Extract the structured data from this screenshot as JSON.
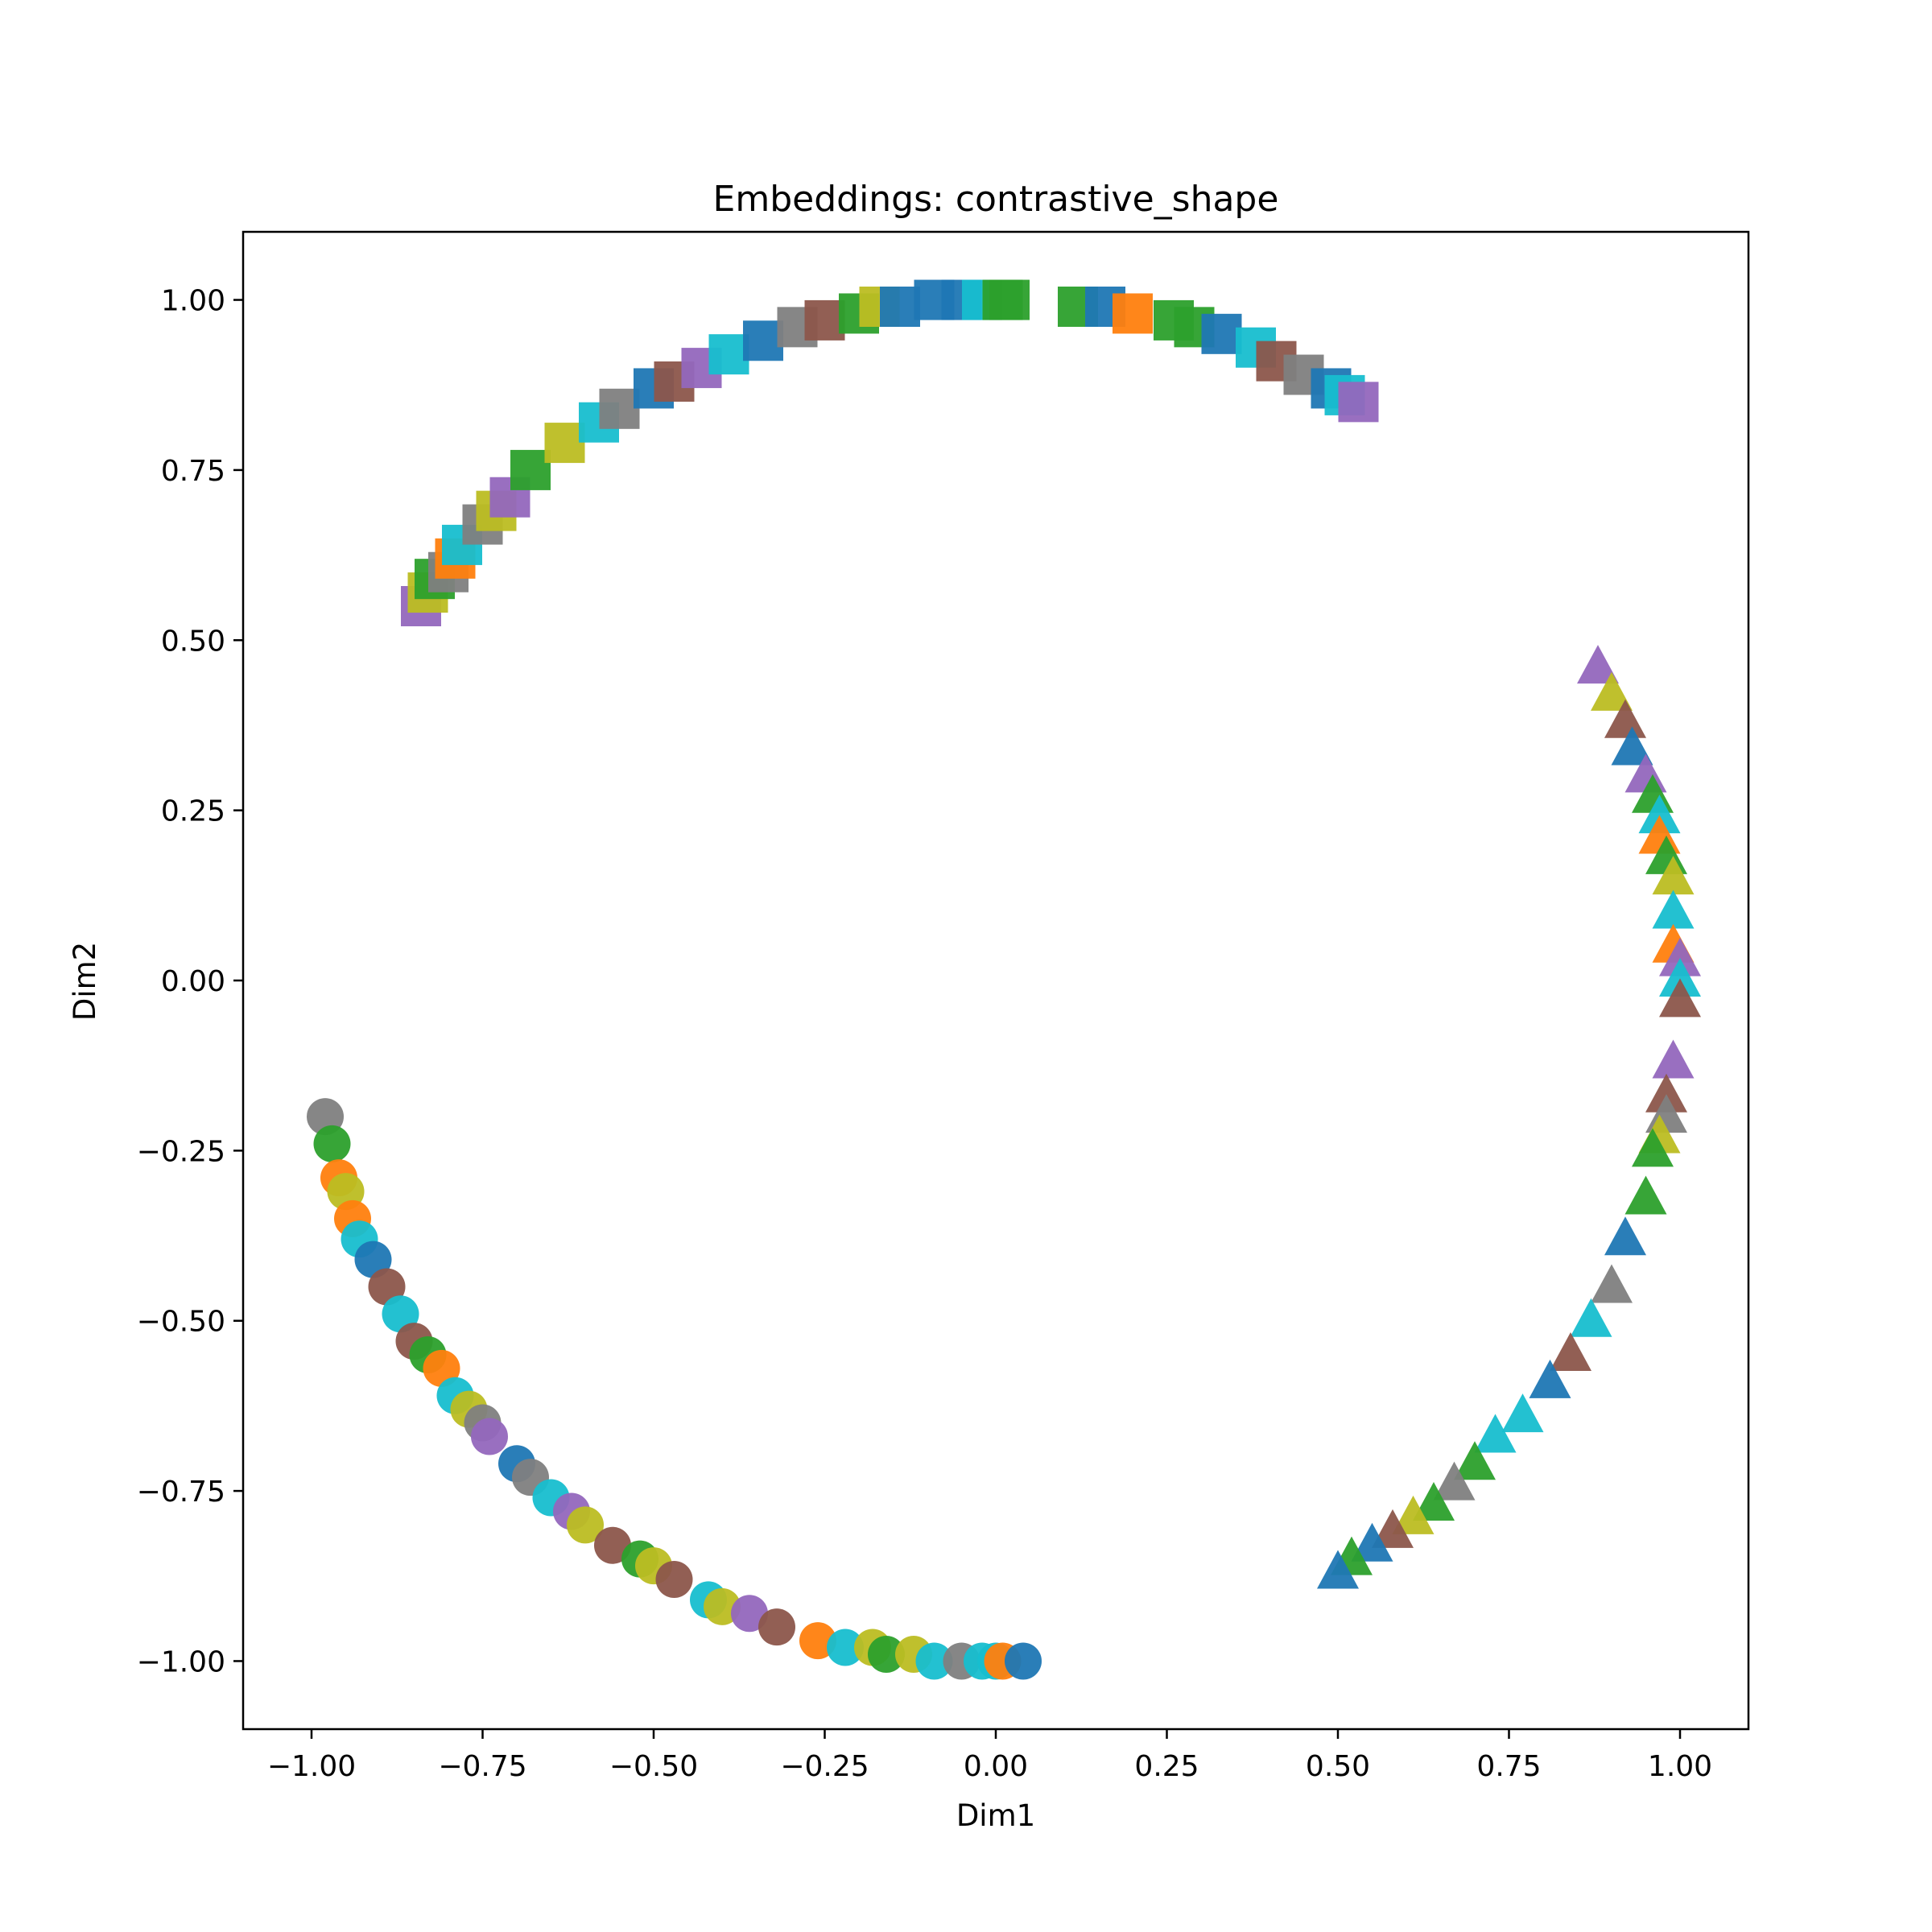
{
  "chart_data": {
    "type": "scatter",
    "title": "Embeddings: contrastive_shape",
    "xlabel": "Dim1",
    "ylabel": "Dim2",
    "xlim": [
      -1.1,
      1.1
    ],
    "ylim": [
      -1.1,
      1.1
    ],
    "xticks": [
      -1.0,
      -0.75,
      -0.5,
      -0.25,
      0.0,
      0.25,
      0.5,
      0.75,
      1.0
    ],
    "yticks": [
      -1.0,
      -0.75,
      -0.5,
      -0.25,
      0.0,
      0.25,
      0.5,
      0.75,
      1.0
    ],
    "xtick_labels": [
      "−1.00",
      "−0.75",
      "−0.50",
      "−0.25",
      "0.00",
      "0.25",
      "0.50",
      "0.75",
      "1.00"
    ],
    "ytick_labels": [
      "−1.00",
      "−0.75",
      "−0.50",
      "−0.25",
      "0.00",
      "0.25",
      "0.50",
      "0.75",
      "1.00"
    ],
    "grid": false,
    "legend": "none",
    "palette": [
      "#1f77b4",
      "#ff7f0e",
      "#2ca02c",
      "#d62728",
      "#9467bd",
      "#8c564b",
      "#e377c2",
      "#7f7f7f",
      "#bcbd22",
      "#17becf"
    ],
    "series": [
      {
        "marker": "square",
        "points": [
          [
            -0.84,
            0.55,
            "#9467bd"
          ],
          [
            -0.83,
            0.57,
            "#bcbd22"
          ],
          [
            -0.82,
            0.59,
            "#2ca02c"
          ],
          [
            -0.8,
            0.6,
            "#7f7f7f"
          ],
          [
            -0.79,
            0.62,
            "#ff7f0e"
          ],
          [
            -0.78,
            0.64,
            "#17becf"
          ],
          [
            -0.75,
            0.67,
            "#7f7f7f"
          ],
          [
            -0.73,
            0.69,
            "#bcbd22"
          ],
          [
            -0.71,
            0.71,
            "#9467bd"
          ],
          [
            -0.68,
            0.75,
            "#2ca02c"
          ],
          [
            -0.63,
            0.79,
            "#bcbd22"
          ],
          [
            -0.58,
            0.82,
            "#17becf"
          ],
          [
            -0.55,
            0.84,
            "#7f7f7f"
          ],
          [
            -0.5,
            0.87,
            "#1f77b4"
          ],
          [
            -0.47,
            0.88,
            "#8c564b"
          ],
          [
            -0.43,
            0.9,
            "#9467bd"
          ],
          [
            -0.39,
            0.92,
            "#17becf"
          ],
          [
            -0.34,
            0.94,
            "#1f77b4"
          ],
          [
            -0.29,
            0.96,
            "#7f7f7f"
          ],
          [
            -0.25,
            0.97,
            "#8c564b"
          ],
          [
            -0.2,
            0.98,
            "#2ca02c"
          ],
          [
            -0.17,
            0.99,
            "#bcbd22"
          ],
          [
            -0.14,
            0.99,
            "#1f77b4"
          ],
          [
            -0.09,
            1.0,
            "#1f77b4"
          ],
          [
            -0.05,
            1.0,
            "#1f77b4"
          ],
          [
            -0.02,
            1.0,
            "#17becf"
          ],
          [
            0.01,
            1.0,
            "#2ca02c"
          ],
          [
            0.02,
            1.0,
            "#2ca02c"
          ],
          [
            0.12,
            0.99,
            "#2ca02c"
          ],
          [
            0.16,
            0.99,
            "#1f77b4"
          ],
          [
            0.2,
            0.98,
            "#ff7f0e"
          ],
          [
            0.26,
            0.97,
            "#2ca02c"
          ],
          [
            0.29,
            0.96,
            "#2ca02c"
          ],
          [
            0.33,
            0.95,
            "#1f77b4"
          ],
          [
            0.38,
            0.93,
            "#17becf"
          ],
          [
            0.41,
            0.91,
            "#8c564b"
          ],
          [
            0.45,
            0.89,
            "#7f7f7f"
          ],
          [
            0.49,
            0.87,
            "#1f77b4"
          ],
          [
            0.51,
            0.86,
            "#17becf"
          ],
          [
            0.53,
            0.85,
            "#9467bd"
          ]
        ]
      },
      {
        "marker": "triangle",
        "points": [
          [
            0.88,
            0.46,
            "#9467bd"
          ],
          [
            0.9,
            0.42,
            "#bcbd22"
          ],
          [
            0.92,
            0.38,
            "#8c564b"
          ],
          [
            0.93,
            0.34,
            "#1f77b4"
          ],
          [
            0.95,
            0.3,
            "#9467bd"
          ],
          [
            0.96,
            0.27,
            "#2ca02c"
          ],
          [
            0.97,
            0.24,
            "#17becf"
          ],
          [
            0.97,
            0.21,
            "#ff7f0e"
          ],
          [
            0.98,
            0.18,
            "#2ca02c"
          ],
          [
            0.99,
            0.15,
            "#bcbd22"
          ],
          [
            0.99,
            0.1,
            "#17becf"
          ],
          [
            0.99,
            0.05,
            "#ff7f0e"
          ],
          [
            1.0,
            0.03,
            "#9467bd"
          ],
          [
            1.0,
            0.0,
            "#17becf"
          ],
          [
            1.0,
            -0.03,
            "#8c564b"
          ],
          [
            0.99,
            -0.12,
            "#9467bd"
          ],
          [
            0.98,
            -0.17,
            "#8c564b"
          ],
          [
            0.98,
            -0.2,
            "#7f7f7f"
          ],
          [
            0.97,
            -0.23,
            "#bcbd22"
          ],
          [
            0.96,
            -0.25,
            "#2ca02c"
          ],
          [
            0.95,
            -0.32,
            "#2ca02c"
          ],
          [
            0.92,
            -0.38,
            "#1f77b4"
          ],
          [
            0.9,
            -0.45,
            "#7f7f7f"
          ],
          [
            0.87,
            -0.5,
            "#17becf"
          ],
          [
            0.84,
            -0.55,
            "#8c564b"
          ],
          [
            0.81,
            -0.59,
            "#1f77b4"
          ],
          [
            0.77,
            -0.64,
            "#17becf"
          ],
          [
            0.73,
            -0.67,
            "#17becf"
          ],
          [
            0.7,
            -0.71,
            "#2ca02c"
          ],
          [
            0.67,
            -0.74,
            "#7f7f7f"
          ],
          [
            0.64,
            -0.77,
            "#2ca02c"
          ],
          [
            0.61,
            -0.79,
            "#bcbd22"
          ],
          [
            0.58,
            -0.81,
            "#8c564b"
          ],
          [
            0.55,
            -0.83,
            "#1f77b4"
          ],
          [
            0.52,
            -0.85,
            "#2ca02c"
          ],
          [
            0.5,
            -0.87,
            "#1f77b4"
          ]
        ]
      },
      {
        "marker": "circle",
        "points": [
          [
            -0.98,
            -0.2,
            "#7f7f7f"
          ],
          [
            -0.97,
            -0.24,
            "#2ca02c"
          ],
          [
            -0.96,
            -0.29,
            "#ff7f0e"
          ],
          [
            -0.95,
            -0.31,
            "#bcbd22"
          ],
          [
            -0.94,
            -0.35,
            "#ff7f0e"
          ],
          [
            -0.93,
            -0.38,
            "#17becf"
          ],
          [
            -0.91,
            -0.41,
            "#1f77b4"
          ],
          [
            -0.89,
            -0.45,
            "#8c564b"
          ],
          [
            -0.87,
            -0.49,
            "#17becf"
          ],
          [
            -0.85,
            -0.53,
            "#8c564b"
          ],
          [
            -0.83,
            -0.55,
            "#2ca02c"
          ],
          [
            -0.81,
            -0.57,
            "#ff7f0e"
          ],
          [
            -0.79,
            -0.61,
            "#17becf"
          ],
          [
            -0.77,
            -0.63,
            "#bcbd22"
          ],
          [
            -0.75,
            -0.65,
            "#7f7f7f"
          ],
          [
            -0.74,
            -0.67,
            "#9467bd"
          ],
          [
            -0.7,
            -0.71,
            "#1f77b4"
          ],
          [
            -0.68,
            -0.73,
            "#7f7f7f"
          ],
          [
            -0.65,
            -0.76,
            "#17becf"
          ],
          [
            -0.62,
            -0.78,
            "#9467bd"
          ],
          [
            -0.6,
            -0.8,
            "#bcbd22"
          ],
          [
            -0.56,
            -0.83,
            "#8c564b"
          ],
          [
            -0.52,
            -0.85,
            "#2ca02c"
          ],
          [
            -0.5,
            -0.86,
            "#bcbd22"
          ],
          [
            -0.47,
            -0.88,
            "#8c564b"
          ],
          [
            -0.42,
            -0.91,
            "#17becf"
          ],
          [
            -0.4,
            -0.92,
            "#bcbd22"
          ],
          [
            -0.36,
            -0.93,
            "#9467bd"
          ],
          [
            -0.32,
            -0.95,
            "#8c564b"
          ],
          [
            -0.26,
            -0.97,
            "#ff7f0e"
          ],
          [
            -0.22,
            -0.98,
            "#17becf"
          ],
          [
            -0.18,
            -0.98,
            "#bcbd22"
          ],
          [
            -0.16,
            -0.99,
            "#2ca02c"
          ],
          [
            -0.12,
            -0.99,
            "#bcbd22"
          ],
          [
            -0.09,
            -1.0,
            "#17becf"
          ],
          [
            -0.05,
            -1.0,
            "#7f7f7f"
          ],
          [
            -0.02,
            -1.0,
            "#17becf"
          ],
          [
            0.0,
            -1.0,
            "#17becf"
          ],
          [
            0.01,
            -1.0,
            "#ff7f0e"
          ],
          [
            0.04,
            -1.0,
            "#1f77b4"
          ]
        ]
      }
    ]
  }
}
